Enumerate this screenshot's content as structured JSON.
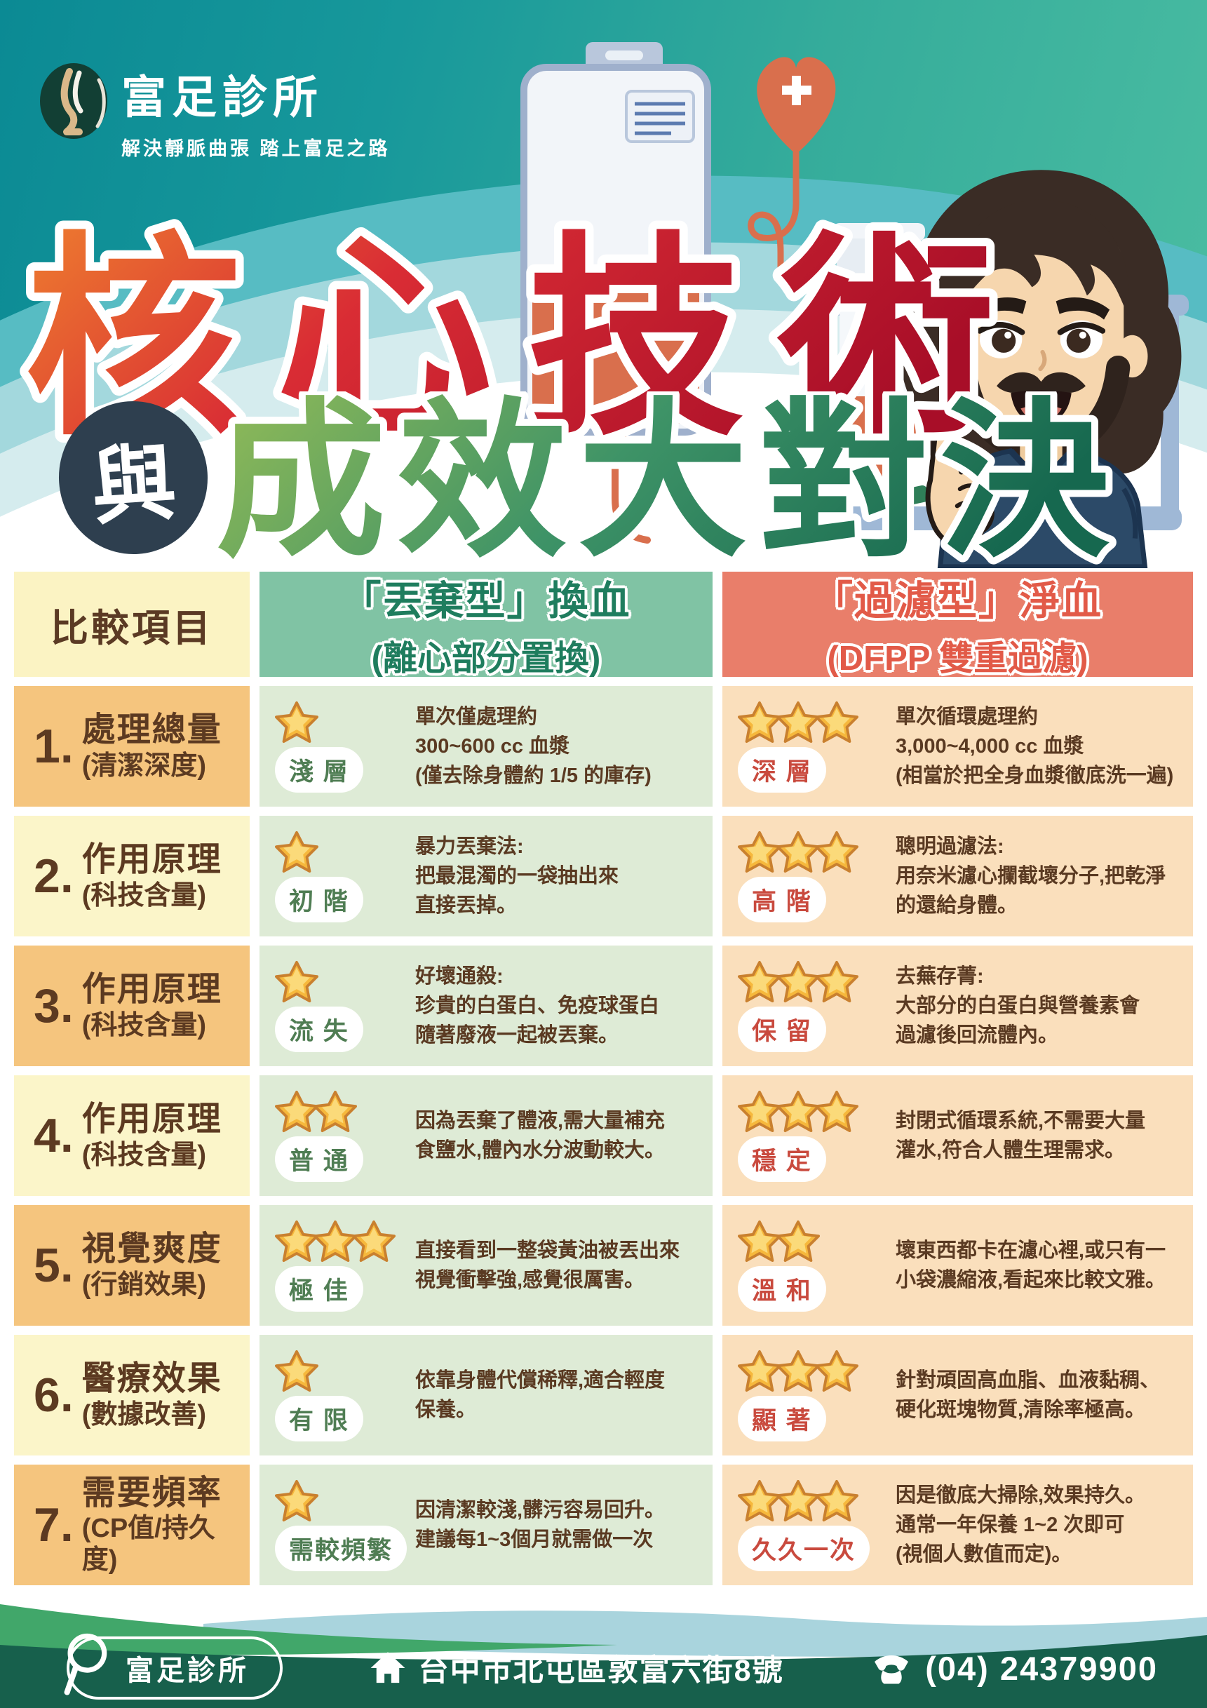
{
  "brand": {
    "name": "富足診所",
    "tagline": "解決靜脈曲張 踏上富足之路"
  },
  "title": {
    "line1": "核心技術",
    "connector": "與",
    "line2": "成效大對決"
  },
  "table": {
    "header": {
      "compare": "比較項目",
      "left_title": "「丟棄型」換血",
      "left_sub": "(離心部分置換)",
      "right_title": "「過濾型」淨血",
      "right_sub": "(DFPP 雙重過濾)"
    },
    "rows": [
      {
        "num": "1.",
        "label": "處理總量",
        "sub": "(清潔深度)",
        "left": {
          "stars": 1,
          "badge": "淺 層",
          "desc": "單次僅處理約\n300~600 cc 血漿\n(僅去除身體約 1/5 的庫存)"
        },
        "right": {
          "stars": 3,
          "badge": "深 層",
          "desc": "單次循環處理約\n3,000~4,000 cc 血漿\n(相當於把全身血漿徹底洗一遍)"
        }
      },
      {
        "num": "2.",
        "label": "作用原理",
        "sub": "(科技含量)",
        "left": {
          "stars": 1,
          "badge": "初 階",
          "desc": "暴力丟棄法:\n把最混濁的一袋抽出來\n直接丟掉。"
        },
        "right": {
          "stars": 3,
          "badge": "高 階",
          "desc": "聰明過濾法:\n用奈米濾心攔截壞分子,把乾淨\n的還給身體。"
        }
      },
      {
        "num": "3.",
        "label": "作用原理",
        "sub": "(科技含量)",
        "left": {
          "stars": 1,
          "badge": "流 失",
          "desc": "好壞通殺:\n珍貴的白蛋白、免疫球蛋白\n隨著廢液一起被丟棄。"
        },
        "right": {
          "stars": 3,
          "badge": "保 留",
          "desc": "去蕪存菁:\n大部分的白蛋白與營養素會\n過濾後回流體內。"
        }
      },
      {
        "num": "4.",
        "label": "作用原理",
        "sub": "(科技含量)",
        "left": {
          "stars": 2,
          "badge": "普 通",
          "desc": "因為丟棄了體液,需大量補充\n食鹽水,體內水分波動較大。"
        },
        "right": {
          "stars": 3,
          "badge": "穩 定",
          "desc": "封閉式循環系統,不需要大量\n灌水,符合人體生理需求。"
        }
      },
      {
        "num": "5.",
        "label": "視覺爽度",
        "sub": "(行銷效果)",
        "left": {
          "stars": 3,
          "badge": "極 佳",
          "desc": "直接看到一整袋黃油被丟出來\n視覺衝擊強,感覺很厲害。"
        },
        "right": {
          "stars": 2,
          "badge": "溫 和",
          "desc": "壞東西都卡在濾心裡,或只有一\n小袋濃縮液,看起來比較文雅。"
        }
      },
      {
        "num": "6.",
        "label": "醫療效果",
        "sub": "(數據改善)",
        "left": {
          "stars": 1,
          "badge": "有 限",
          "desc": "依靠身體代償稀釋,適合輕度\n保養。"
        },
        "right": {
          "stars": 3,
          "badge": "顯 著",
          "desc": "針對頑固高血脂、血液黏稠、\n硬化斑塊物質,清除率極高。"
        }
      },
      {
        "num": "7.",
        "label": "需要頻率",
        "sub": "(CP值/持久度)",
        "left": {
          "stars": 1,
          "badge": "需較頻繁",
          "desc": "因清潔較淺,髒污容易回升。\n建議每1~3個月就需做一次"
        },
        "right": {
          "stars": 3,
          "badge": "久久一次",
          "desc": "因是徹底大掃除,效果持久。\n通常一年保養 1~2 次即可\n(視個人數值而定)。"
        }
      }
    ]
  },
  "footer": {
    "clinic": "富足診所",
    "address": "台中市北屯區敦富六街8號",
    "phone": "(04) 24379900"
  },
  "colors": {
    "teal_gradient_start": "#0B8A94",
    "teal_gradient_end": "#4CBEA2",
    "header_compare_bg": "#FBF3C3",
    "header_left_bg": "#80C3A4",
    "header_left_text": "#1F7D5E",
    "header_right_bg": "#E97E6A",
    "header_right_text": "#E25A48",
    "label_orange_bg": "#F5C57E",
    "label_yellow_bg": "#FBF5C9",
    "label_text": "#5C3A21",
    "cell_green_bg": "#DEEBD6",
    "cell_peach_bg": "#FADFBC",
    "badge_green_text": "#4F7D53",
    "badge_red_text": "#C94A3E",
    "desc_text": "#5A3A22",
    "star_fill": "#F6B83C",
    "star_stroke": "#C9802F",
    "title_red_start": "#EE7E2F",
    "title_red_end": "#A80E28",
    "title_green_start": "#93BB57",
    "title_green_end": "#16684F",
    "connector_bg": "#2E3F4F",
    "footer_bg": "#17604C",
    "footer_wave_blue": "#A9D4DD",
    "footer_wave_green": "#41A76A",
    "blood_color": "#D96F4D"
  }
}
